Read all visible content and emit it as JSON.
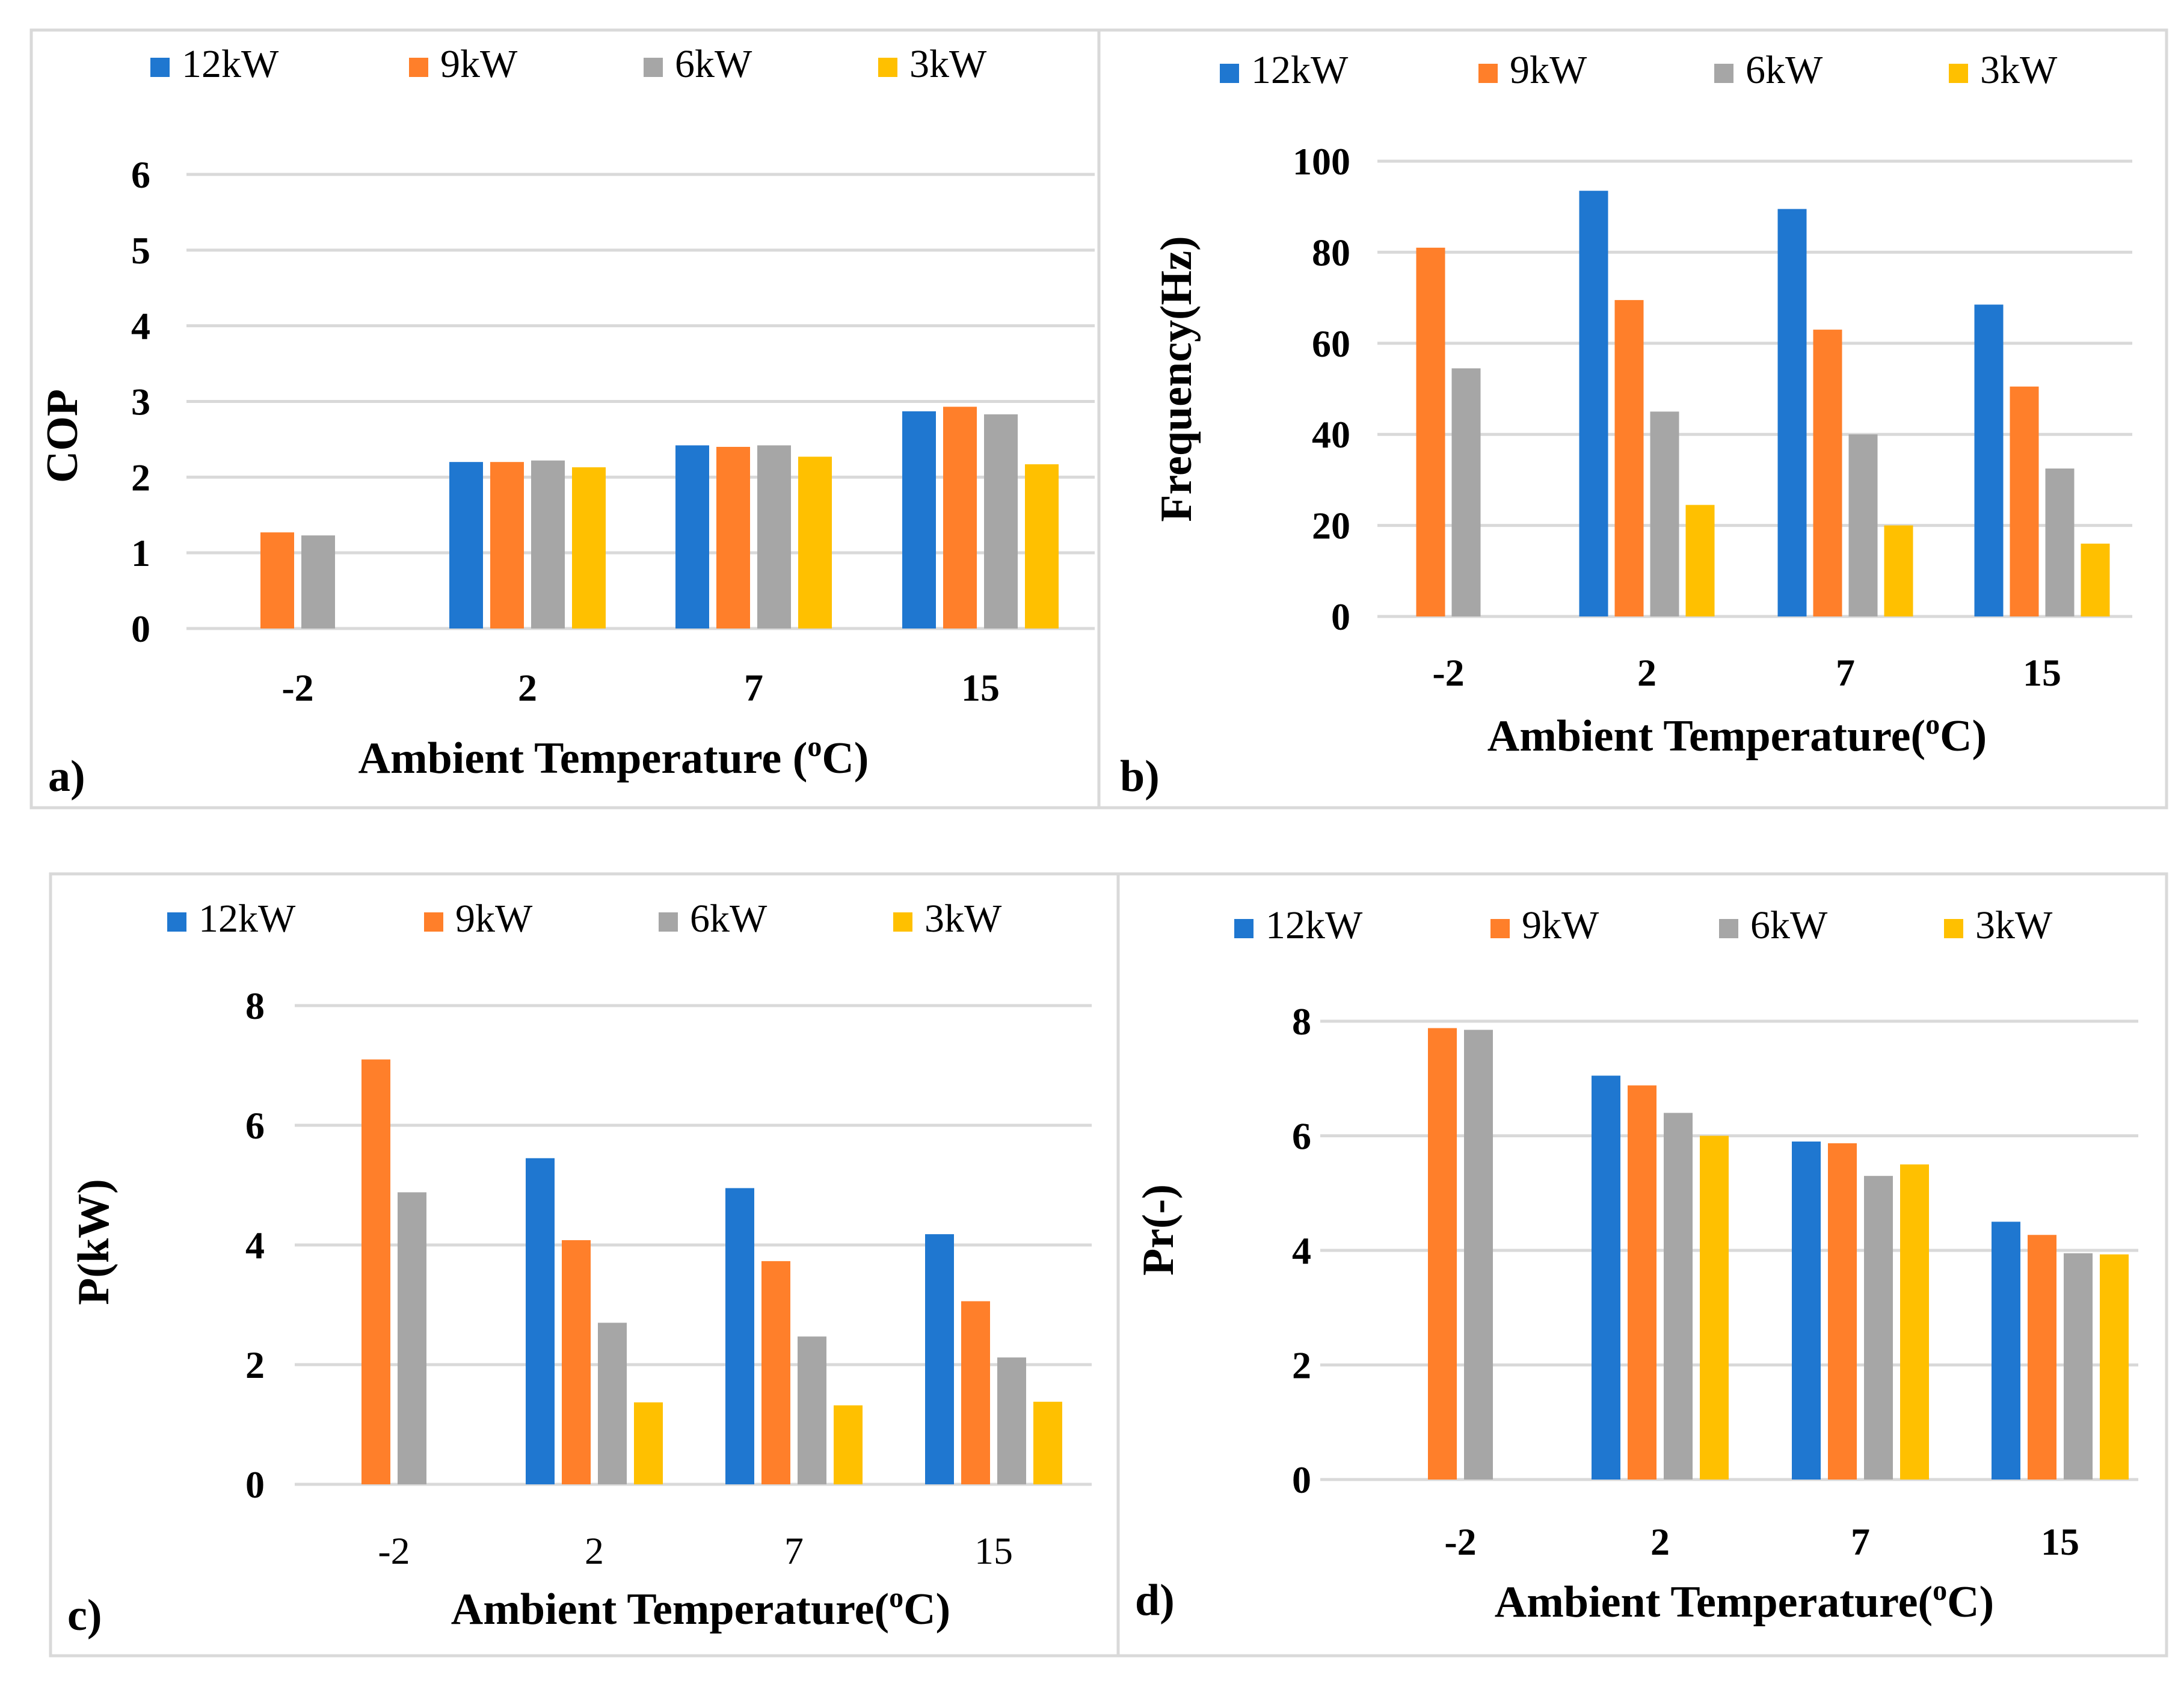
{
  "series_names": [
    "12kW",
    "9kW",
    "6kW",
    "3kW"
  ],
  "colors": [
    "#1f77d0",
    "#ff7f2a",
    "#a6a6a6",
    "#ffc000"
  ],
  "chart_data": [
    {
      "id": "a",
      "type": "bar",
      "panel_label": "a)",
      "categories": [
        "-2",
        "2",
        "7",
        "15"
      ],
      "series": [
        {
          "name": "12kW",
          "values": [
            null,
            2.2,
            2.42,
            2.87
          ]
        },
        {
          "name": "9kW",
          "values": [
            1.27,
            2.2,
            2.4,
            2.93
          ]
        },
        {
          "name": "6kW",
          "values": [
            1.23,
            2.22,
            2.42,
            2.83
          ]
        },
        {
          "name": "3kW",
          "values": [
            null,
            2.13,
            2.27,
            2.17
          ]
        }
      ],
      "ylabel": "COP",
      "xlabel": "Ambient Temperature (oC)",
      "xlabel_parts": [
        "Ambient Temperature (",
        "o",
        "C)"
      ],
      "ylim": [
        0,
        6
      ],
      "yticks": [
        "0",
        "1",
        "2",
        "3",
        "4",
        "5",
        "6"
      ]
    },
    {
      "id": "b",
      "type": "bar",
      "panel_label": "b)",
      "categories": [
        "-2",
        "2",
        "7",
        "15"
      ],
      "series": [
        {
          "name": "12kW",
          "values": [
            null,
            93.5,
            89.5,
            68.5
          ]
        },
        {
          "name": "9kW",
          "values": [
            81,
            69.5,
            63,
            50.5
          ]
        },
        {
          "name": "6kW",
          "values": [
            54.5,
            45,
            40,
            32.5
          ]
        },
        {
          "name": "3kW",
          "values": [
            null,
            24.5,
            20,
            16
          ]
        }
      ],
      "ylabel": "Frequency(Hz)",
      "xlabel": "Ambient Temperature(oC)",
      "xlabel_parts": [
        "Ambient Temperature(",
        "o",
        "C)"
      ],
      "ylim": [
        0,
        100
      ],
      "yticks": [
        "0",
        "20",
        "40",
        "60",
        "80",
        "100"
      ]
    },
    {
      "id": "c",
      "type": "bar",
      "panel_label": "c)",
      "categories": [
        "-2",
        "2",
        "7",
        "15"
      ],
      "series": [
        {
          "name": "12kW",
          "values": [
            null,
            5.45,
            4.95,
            4.18
          ]
        },
        {
          "name": "9kW",
          "values": [
            7.1,
            4.08,
            3.73,
            3.06
          ]
        },
        {
          "name": "6kW",
          "values": [
            4.88,
            2.7,
            2.47,
            2.12
          ]
        },
        {
          "name": "3kW",
          "values": [
            null,
            1.37,
            1.32,
            1.38
          ]
        }
      ],
      "ylabel": "P(kW)",
      "xlabel": "Ambient Temperature(oC)",
      "xlabel_parts": [
        "Ambient Temperature(",
        "o",
        "C)"
      ],
      "ylim": [
        0,
        8
      ],
      "yticks": [
        "0",
        "2",
        "4",
        "6",
        "8"
      ]
    },
    {
      "id": "d",
      "type": "bar",
      "panel_label": "d)",
      "categories": [
        "-2",
        "2",
        "7",
        "15"
      ],
      "series": [
        {
          "name": "12kW",
          "values": [
            null,
            7.05,
            5.9,
            4.5
          ]
        },
        {
          "name": "9kW",
          "values": [
            7.88,
            6.88,
            5.87,
            4.27
          ]
        },
        {
          "name": "6kW",
          "values": [
            7.85,
            6.4,
            5.3,
            3.95
          ]
        },
        {
          "name": "3kW",
          "values": [
            null,
            6.0,
            5.5,
            3.93
          ]
        }
      ],
      "ylabel": "Pr(-)",
      "xlabel": "Ambient Temperature(oC)",
      "xlabel_parts": [
        "Ambient Temperature(",
        "o",
        "C)"
      ],
      "ylim": [
        0,
        8
      ],
      "yticks": [
        "0",
        "2",
        "4",
        "6",
        "8"
      ]
    }
  ]
}
